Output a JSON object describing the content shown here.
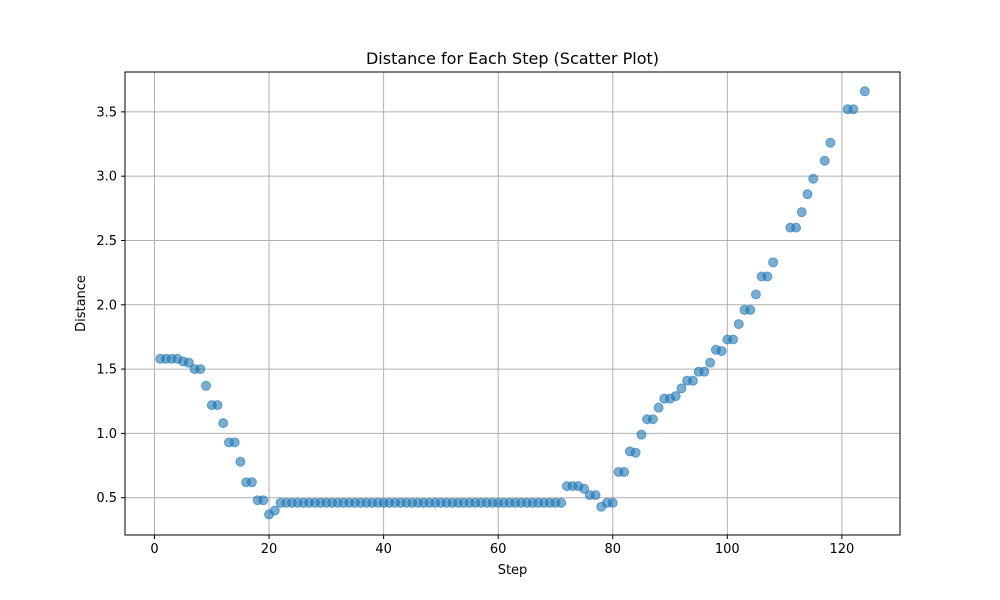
{
  "chart_data": {
    "type": "scatter",
    "title": "Distance for Each Step (Scatter Plot)",
    "xlabel": "Step",
    "ylabel": "Distance",
    "xlim": [
      -5.15,
      130.15
    ],
    "ylim": [
      0.21,
      3.81
    ],
    "x_ticks": [
      0,
      20,
      40,
      60,
      80,
      100,
      120
    ],
    "y_ticks": [
      0.5,
      1.0,
      1.5,
      2.0,
      2.5,
      3.0,
      3.5
    ],
    "x_tick_labels": [
      "0",
      "20",
      "40",
      "60",
      "80",
      "100",
      "120"
    ],
    "y_tick_labels": [
      "0.5",
      "1.0",
      "1.5",
      "2.0",
      "2.5",
      "3.0",
      "3.5"
    ],
    "grid": true,
    "color": "#1f77b4",
    "alpha": 0.6,
    "x": [
      1,
      2,
      3,
      4,
      5,
      6,
      7,
      8,
      9,
      10,
      11,
      12,
      13,
      14,
      15,
      16,
      17,
      18,
      19,
      20,
      21,
      22,
      23,
      24,
      25,
      26,
      27,
      28,
      29,
      30,
      31,
      32,
      33,
      34,
      35,
      36,
      37,
      38,
      39,
      40,
      41,
      42,
      43,
      44,
      45,
      46,
      47,
      48,
      49,
      50,
      51,
      52,
      53,
      54,
      55,
      56,
      57,
      58,
      59,
      60,
      61,
      62,
      63,
      64,
      65,
      66,
      67,
      68,
      69,
      70,
      71,
      72,
      73,
      74,
      75,
      76,
      77,
      78,
      79,
      80,
      81,
      82,
      83,
      84,
      85,
      86,
      87,
      88,
      89,
      90,
      91,
      92,
      93,
      94,
      95,
      96,
      97,
      98,
      99,
      100,
      101,
      102,
      103,
      104,
      105,
      106,
      107,
      108,
      111,
      112,
      113,
      114,
      115,
      117,
      118,
      121,
      122,
      124
    ],
    "y": [
      1.58,
      1.58,
      1.58,
      1.58,
      1.56,
      1.55,
      1.5,
      1.5,
      1.37,
      1.22,
      1.22,
      1.08,
      0.93,
      0.93,
      0.78,
      0.62,
      0.62,
      0.48,
      0.48,
      0.37,
      0.4,
      0.46,
      0.46,
      0.46,
      0.46,
      0.46,
      0.46,
      0.46,
      0.46,
      0.46,
      0.46,
      0.46,
      0.46,
      0.46,
      0.46,
      0.46,
      0.46,
      0.46,
      0.46,
      0.46,
      0.46,
      0.46,
      0.46,
      0.46,
      0.46,
      0.46,
      0.46,
      0.46,
      0.46,
      0.46,
      0.46,
      0.46,
      0.46,
      0.46,
      0.46,
      0.46,
      0.46,
      0.46,
      0.46,
      0.46,
      0.46,
      0.46,
      0.46,
      0.46,
      0.46,
      0.46,
      0.46,
      0.46,
      0.46,
      0.46,
      0.46,
      0.59,
      0.59,
      0.59,
      0.57,
      0.52,
      0.52,
      0.43,
      0.46,
      0.46,
      0.7,
      0.7,
      0.86,
      0.85,
      0.99,
      1.11,
      1.11,
      1.2,
      1.27,
      1.27,
      1.29,
      1.35,
      1.41,
      1.41,
      1.48,
      1.48,
      1.55,
      1.65,
      1.64,
      1.73,
      1.73,
      1.85,
      1.96,
      1.96,
      2.08,
      2.22,
      2.22,
      2.33,
      2.6,
      2.6,
      2.72,
      2.86,
      2.98,
      3.12,
      3.26,
      3.52,
      3.52,
      3.66
    ]
  }
}
